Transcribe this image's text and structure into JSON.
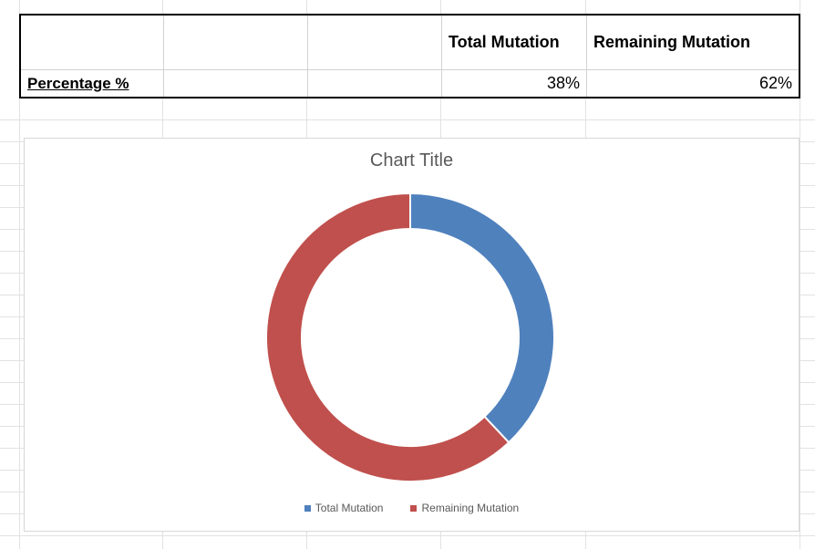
{
  "sheet": {
    "table": {
      "header_cells": [
        "",
        "",
        "",
        "Total Mutation",
        "Remaining Mutation"
      ],
      "row_label": "Percentage %",
      "value_cells": [
        "",
        "",
        "38%",
        "62%"
      ]
    }
  },
  "chart_data": {
    "type": "pie",
    "subtype": "doughnut",
    "title": "Chart Title",
    "categories": [
      "Total Mutation",
      "Remaining Mutation"
    ],
    "values": [
      38,
      62
    ],
    "unit": "%",
    "colors": [
      "#4F81BD",
      "#C0504D"
    ],
    "hole_ratio": 0.75,
    "start_angle_deg": 0,
    "legend_position": "bottom",
    "title_color": "#595959",
    "legend_text_color": "#595959",
    "grid": false
  }
}
